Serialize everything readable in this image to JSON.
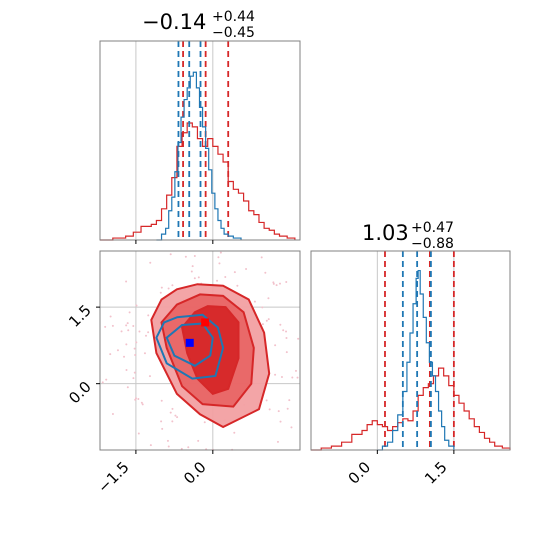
{
  "chart_data": {
    "type": "corner",
    "colors": {
      "series_a": "#d62728",
      "series_b": "#1f77b4",
      "marker_a": "#ff0000",
      "marker_b": "#0000ff",
      "frame": "#808080",
      "grid": "#c8c8c8"
    },
    "panels": [
      {
        "id": "marginal-param1",
        "type": "histogram",
        "title": {
          "value": "−0.14",
          "upper": "+0.44",
          "lower": "−0.45"
        },
        "xlim": [
          -2.2,
          1.7
        ],
        "series": [
          {
            "color": "#d62728",
            "bins": [
              [
                -2.2,
                0.0
              ],
              [
                -1.95,
                0.01
              ],
              [
                -1.7,
                0.02
              ],
              [
                -1.55,
                0.04
              ],
              [
                -1.4,
                0.07
              ],
              [
                -1.2,
                0.08
              ],
              [
                -1.1,
                0.1
              ],
              [
                -1.0,
                0.16
              ],
              [
                -0.9,
                0.23
              ],
              [
                -0.8,
                0.32
              ],
              [
                -0.7,
                0.48
              ],
              [
                -0.6,
                0.55
              ],
              [
                -0.5,
                0.6
              ],
              [
                -0.4,
                0.58
              ],
              [
                -0.3,
                0.52
              ],
              [
                -0.2,
                0.48
              ],
              [
                -0.1,
                0.52
              ],
              [
                0.0,
                0.48
              ],
              [
                0.1,
                0.44
              ],
              [
                0.2,
                0.4
              ],
              [
                0.3,
                0.3
              ],
              [
                0.4,
                0.26
              ],
              [
                0.5,
                0.24
              ],
              [
                0.6,
                0.2
              ],
              [
                0.7,
                0.15
              ],
              [
                0.8,
                0.13
              ],
              [
                0.9,
                0.09
              ],
              [
                1.0,
                0.06
              ],
              [
                1.1,
                0.05
              ],
              [
                1.2,
                0.03
              ],
              [
                1.3,
                0.02
              ],
              [
                1.45,
                0.01
              ],
              [
                1.6,
                0.0
              ]
            ],
            "quantiles": [
              -0.58,
              -0.14,
              0.3
            ]
          },
          {
            "color": "#1f77b4",
            "bins": [
              [
                -1.1,
                0.0
              ],
              [
                -1.0,
                0.03
              ],
              [
                -0.92,
                0.06
              ],
              [
                -0.86,
                0.15
              ],
              [
                -0.8,
                0.22
              ],
              [
                -0.74,
                0.35
              ],
              [
                -0.68,
                0.5
              ],
              [
                -0.62,
                0.63
              ],
              [
                -0.56,
                0.72
              ],
              [
                -0.5,
                0.78
              ],
              [
                -0.44,
                0.84
              ],
              [
                -0.38,
                0.86
              ],
              [
                -0.32,
                0.78
              ],
              [
                -0.26,
                0.68
              ],
              [
                -0.2,
                0.58
              ],
              [
                -0.14,
                0.47
              ],
              [
                -0.08,
                0.36
              ],
              [
                -0.02,
                0.24
              ],
              [
                0.04,
                0.16
              ],
              [
                0.1,
                0.1
              ],
              [
                0.16,
                0.06
              ],
              [
                0.22,
                0.03
              ],
              [
                0.3,
                0.02
              ],
              [
                0.4,
                0.01
              ],
              [
                0.55,
                0.0
              ]
            ],
            "quantiles": [
              -0.67,
              -0.46,
              -0.24
            ]
          }
        ]
      },
      {
        "id": "joint-param1-param2",
        "type": "contour",
        "xlim": [
          -2.2,
          1.7
        ],
        "ylim": [
          -1.3,
          2.6
        ],
        "xticks": [
          "−1.5",
          "0.0"
        ],
        "xtick_values": [
          -1.5,
          0.0
        ],
        "yticks": [
          "0.0",
          "1.5"
        ],
        "ytick_values": [
          0.0,
          1.5
        ],
        "series": [
          {
            "color": "#d62728",
            "contours": [
              [
                [
                  -0.3,
                  1.95
                ],
                [
                  0.2,
                  1.92
                ],
                [
                  0.7,
                  1.65
                ],
                [
                  1.0,
                  1.0
                ],
                [
                  1.1,
                  0.2
                ],
                [
                  0.9,
                  -0.5
                ],
                [
                  0.2,
                  -0.85
                ],
                [
                  -0.25,
                  -0.6
                ],
                [
                  -0.7,
                  -0.2
                ],
                [
                  -1.1,
                  0.6
                ],
                [
                  -1.2,
                  1.25
                ],
                [
                  -1.0,
                  1.65
                ],
                [
                  -0.7,
                  1.85
                ]
              ],
              [
                [
                  -0.25,
                  1.75
                ],
                [
                  0.2,
                  1.72
                ],
                [
                  0.6,
                  1.4
                ],
                [
                  0.8,
                  0.7
                ],
                [
                  0.75,
                  0.0
                ],
                [
                  0.4,
                  -0.45
                ],
                [
                  -0.2,
                  -0.4
                ],
                [
                  -0.6,
                  -0.05
                ],
                [
                  -0.9,
                  0.7
                ],
                [
                  -1.0,
                  1.2
                ],
                [
                  -0.7,
                  1.55
                ]
              ],
              [
                [
                  -0.1,
                  1.52
                ],
                [
                  0.25,
                  1.5
                ],
                [
                  0.5,
                  1.2
                ],
                [
                  0.5,
                  0.5
                ],
                [
                  0.3,
                  -0.1
                ],
                [
                  0.0,
                  -0.2
                ],
                [
                  -0.3,
                  0.1
                ],
                [
                  -0.5,
                  0.6
                ],
                [
                  -0.6,
                  1.1
                ],
                [
                  -0.35,
                  1.4
                ]
              ]
            ],
            "marker": [
              -0.15,
              1.2
            ]
          },
          {
            "color": "#1f77b4",
            "contours": [
              [
                [
                  -0.7,
                  1.3
                ],
                [
                  -0.2,
                  1.35
                ],
                [
                  0.1,
                  1.1
                ],
                [
                  0.2,
                  0.7
                ],
                [
                  0.05,
                  0.15
                ],
                [
                  -0.4,
                  0.1
                ],
                [
                  -0.9,
                  0.4
                ],
                [
                  -1.1,
                  0.9
                ],
                [
                  -0.95,
                  1.2
                ]
              ],
              [
                [
                  -0.6,
                  1.15
                ],
                [
                  -0.2,
                  1.18
                ],
                [
                  0.0,
                  0.9
                ],
                [
                  -0.05,
                  0.55
                ],
                [
                  -0.35,
                  0.35
                ],
                [
                  -0.75,
                  0.55
                ],
                [
                  -0.9,
                  0.9
                ]
              ]
            ],
            "marker": [
              -0.45,
              0.8
            ]
          }
        ]
      },
      {
        "id": "marginal-param2",
        "type": "histogram",
        "title": {
          "value": "1.03",
          "upper": "+0.47",
          "lower": "−0.88"
        },
        "xlim": [
          -1.3,
          2.6
        ],
        "xticks": [
          "0.0",
          "1.5"
        ],
        "xtick_values": [
          0.0,
          1.5
        ],
        "series": [
          {
            "color": "#d62728",
            "bins": [
              [
                -1.3,
                0.0
              ],
              [
                -1.1,
                0.01
              ],
              [
                -0.9,
                0.02
              ],
              [
                -0.7,
                0.04
              ],
              [
                -0.5,
                0.08
              ],
              [
                -0.3,
                0.1
              ],
              [
                -0.2,
                0.13
              ],
              [
                -0.1,
                0.15
              ],
              [
                0.0,
                0.13
              ],
              [
                0.1,
                0.12
              ],
              [
                0.2,
                0.1
              ],
              [
                0.3,
                0.12
              ],
              [
                0.4,
                0.14
              ],
              [
                0.5,
                0.16
              ],
              [
                0.6,
                0.15
              ],
              [
                0.7,
                0.2
              ],
              [
                0.8,
                0.28
              ],
              [
                0.9,
                0.32
              ],
              [
                1.0,
                0.34
              ],
              [
                1.1,
                0.38
              ],
              [
                1.2,
                0.42
              ],
              [
                1.3,
                0.38
              ],
              [
                1.4,
                0.33
              ],
              [
                1.5,
                0.28
              ],
              [
                1.6,
                0.24
              ],
              [
                1.7,
                0.2
              ],
              [
                1.8,
                0.16
              ],
              [
                1.9,
                0.12
              ],
              [
                2.0,
                0.09
              ],
              [
                2.1,
                0.06
              ],
              [
                2.2,
                0.04
              ],
              [
                2.3,
                0.02
              ],
              [
                2.45,
                0.01
              ],
              [
                2.6,
                0.0
              ]
            ],
            "quantiles": [
              0.15,
              1.03,
              1.5
            ]
          },
          {
            "color": "#1f77b4",
            "bins": [
              [
                0.0,
                0.0
              ],
              [
                0.1,
                0.02
              ],
              [
                0.2,
                0.04
              ],
              [
                0.3,
                0.1
              ],
              [
                0.4,
                0.18
              ],
              [
                0.5,
                0.3
              ],
              [
                0.58,
                0.45
              ],
              [
                0.64,
                0.6
              ],
              [
                0.7,
                0.75
              ],
              [
                0.76,
                0.88
              ],
              [
                0.8,
                0.92
              ],
              [
                0.84,
                0.8
              ],
              [
                0.9,
                0.68
              ],
              [
                0.96,
                0.55
              ],
              [
                1.02,
                0.45
              ],
              [
                1.08,
                0.38
              ],
              [
                1.14,
                0.3
              ],
              [
                1.2,
                0.2
              ],
              [
                1.26,
                0.12
              ],
              [
                1.32,
                0.05
              ],
              [
                1.4,
                0.02
              ],
              [
                1.5,
                0.0
              ]
            ],
            "quantiles": [
              0.5,
              0.78,
              1.05
            ]
          }
        ]
      }
    ]
  }
}
